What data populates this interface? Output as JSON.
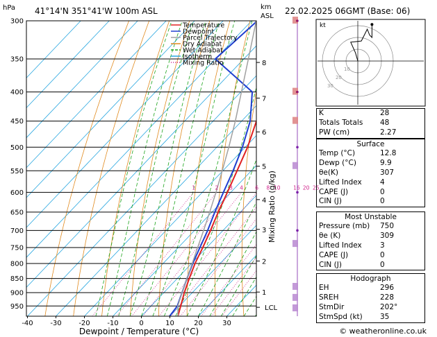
{
  "header": {
    "pressure_unit": "hPa",
    "location": "41°14'N  351°41'W  100m  ASL",
    "altitude_unit_line1": "km",
    "altitude_unit_line2": "ASL",
    "datetime": "22.02.2025  06GMT  (Base: 06)"
  },
  "chart_data": {
    "type": "skewt",
    "xlabel": "Dewpoint / Temperature (°C)",
    "ylabel": "Mixing Ratio (g/kg)",
    "pressure_levels": [
      300,
      350,
      400,
      450,
      500,
      550,
      600,
      650,
      700,
      750,
      800,
      850,
      900,
      950
    ],
    "temperature_ticks": [
      -40,
      -30,
      -20,
      -10,
      0,
      10,
      20,
      30
    ],
    "xlim": [
      -40,
      40
    ],
    "ylim_hpa": [
      990,
      300
    ],
    "km_ticks": [
      {
        "label": "8",
        "p": 355
      },
      {
        "label": "7",
        "p": 410
      },
      {
        "label": "6",
        "p": 470
      },
      {
        "label": "5",
        "p": 540
      },
      {
        "label": "4",
        "p": 618
      },
      {
        "label": "3",
        "p": 697
      },
      {
        "label": "2",
        "p": 792
      },
      {
        "label": "1",
        "p": 898
      }
    ],
    "lcl_label": "LCL",
    "lcl_p": 955,
    "mixing_ratio_labels": [
      "1",
      "2",
      "3",
      "4",
      "6",
      "8",
      "10",
      "16",
      "20",
      "25"
    ],
    "mixing_ratio_values": [
      1,
      2,
      3,
      4,
      6,
      8,
      10,
      16,
      20,
      25
    ],
    "legend": [
      "Temperature",
      "Dewpoint",
      "Parcel Trajectory",
      "Dry Adiabat",
      "Wet Adiabat",
      "Isotherm",
      "Mixing Ratio"
    ],
    "series": [
      {
        "name": "Temperature",
        "color": "#e02020",
        "points": [
          [
            990,
            12.8
          ],
          [
            950,
            10.4
          ],
          [
            900,
            7.2
          ],
          [
            850,
            4.2
          ],
          [
            800,
            1.2
          ],
          [
            750,
            -1.4
          ],
          [
            700,
            -4.4
          ],
          [
            650,
            -7.8
          ],
          [
            600,
            -11.2
          ],
          [
            550,
            -15
          ],
          [
            500,
            -19.2
          ],
          [
            450,
            -24.8
          ],
          [
            400,
            -32
          ],
          [
            350,
            -37.2
          ],
          [
            300,
            -45
          ]
        ]
      },
      {
        "name": "Dewpoint",
        "color": "#1f3fd0",
        "points": [
          [
            990,
            9.9
          ],
          [
            950,
            9.2
          ],
          [
            900,
            6.4
          ],
          [
            850,
            3.4
          ],
          [
            800,
            0.4
          ],
          [
            750,
            -2.4
          ],
          [
            700,
            -5.4
          ],
          [
            650,
            -9
          ],
          [
            600,
            -12.6
          ],
          [
            550,
            -16.4
          ],
          [
            500,
            -21
          ],
          [
            450,
            -27
          ],
          [
            400,
            -36
          ],
          [
            350,
            -60
          ],
          [
            300,
            -58
          ]
        ]
      },
      {
        "name": "Parcel Trajectory",
        "color": "#a0a0a0",
        "points": [
          [
            990,
            12.8
          ],
          [
            950,
            9.4
          ],
          [
            900,
            6.4
          ],
          [
            850,
            3.4
          ],
          [
            800,
            0.2
          ],
          [
            750,
            -3.2
          ],
          [
            700,
            -6.8
          ],
          [
            650,
            -10.8
          ],
          [
            600,
            -15.2
          ],
          [
            550,
            -20.2
          ],
          [
            500,
            -25.8
          ],
          [
            450,
            -32.2
          ],
          [
            400,
            -39.8
          ],
          [
            350,
            -48.4
          ],
          [
            300,
            -58.4
          ]
        ]
      }
    ],
    "legend_colors": {
      "Temperature": "#e02020",
      "Dewpoint": "#1f3fd0",
      "Parcel Trajectory": "#a0a0a0",
      "Dry Adiabat": "#e08a1e",
      "Wet Adiabat": "#1aa31a",
      "Isotherm": "#29a7e0",
      "Mixing Ratio": "#d0208a"
    }
  },
  "hodograph": {
    "unit_label": "kt",
    "ring_labels": [
      "10",
      "20",
      "30"
    ],
    "trace": [
      [
        0,
        0
      ],
      [
        -2,
        7
      ],
      [
        -6,
        16
      ],
      [
        3,
        17
      ],
      [
        8,
        27
      ],
      [
        10,
        22
      ],
      [
        12,
        20
      ],
      [
        12,
        31
      ]
    ]
  },
  "indices_table": {
    "top_rows": [
      {
        "label": "K",
        "value": "28"
      },
      {
        "label": "Totals Totals",
        "value": "48"
      },
      {
        "label": "PW (cm)",
        "value": "2.27"
      }
    ],
    "surface": {
      "title": "Surface",
      "rows": [
        {
          "label": "Temp (°C)",
          "value": "12.8"
        },
        {
          "label": "Dewp (°C)",
          "value": "9.9"
        },
        {
          "label": "θe(K)",
          "value": "307"
        },
        {
          "label": "Lifted Index",
          "value": "4"
        },
        {
          "label": "CAPE (J)",
          "value": "0"
        },
        {
          "label": "CIN (J)",
          "value": "0"
        }
      ]
    },
    "most_unstable": {
      "title": "Most Unstable",
      "rows": [
        {
          "label": "Pressure (mb)",
          "value": "750"
        },
        {
          "label": "θe (K)",
          "value": "309"
        },
        {
          "label": "Lifted Index",
          "value": "3"
        },
        {
          "label": "CAPE (J)",
          "value": "0"
        },
        {
          "label": "CIN (J)",
          "value": "0"
        }
      ]
    },
    "hodograph_stats": {
      "title": "Hodograph",
      "rows": [
        {
          "label": "EH",
          "value": "296"
        },
        {
          "label": "SREH",
          "value": "228"
        },
        {
          "label": "StmDir",
          "value": "202°"
        },
        {
          "label": "StmSpd (kt)",
          "value": "35"
        }
      ]
    }
  },
  "footer": {
    "copyright": "© weatheronline.co.uk"
  }
}
